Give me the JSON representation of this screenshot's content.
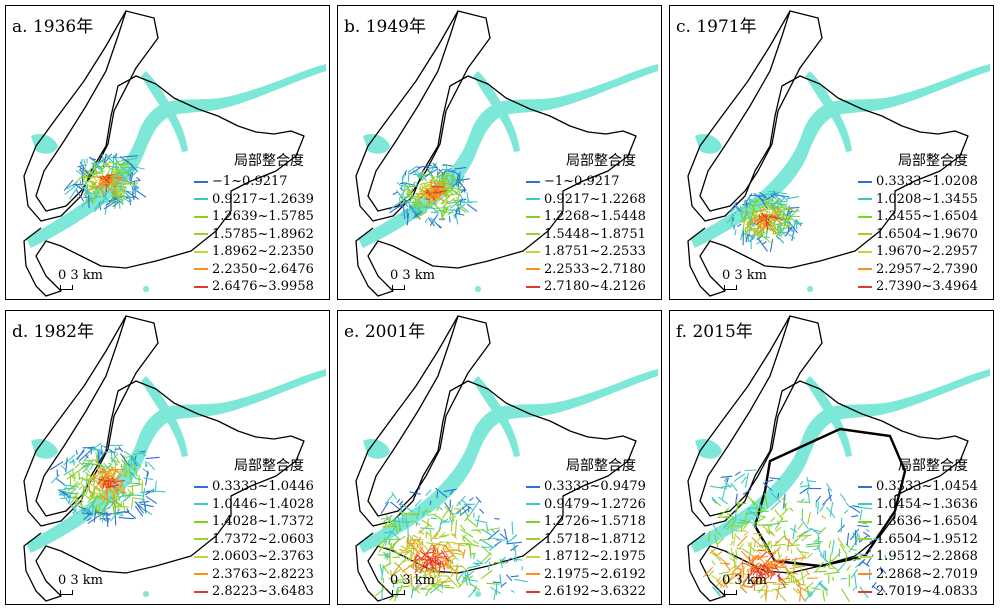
{
  "colors": [
    "#2f6fd6",
    "#3ec9c0",
    "#7ed321",
    "#9bd12a",
    "#c8d23a",
    "#ff8c1a",
    "#e03a2a"
  ],
  "legend_title": "局部整合度",
  "scale_label": "0 3 km",
  "panels": [
    {
      "title": "a. 1936年",
      "ranges": [
        "−1~0.9217",
        "0.9217~1.2639",
        "1.2639~1.5785",
        "1.5785~1.8962",
        "1.8962~2.2350",
        "2.2350~2.6476",
        "2.6476~3.9958"
      ]
    },
    {
      "title": "b. 1949年",
      "ranges": [
        "−1~0.9217",
        "0.9217~1.2268",
        "1.2268~1.5448",
        "1.5448~1.8751",
        "1.8751~2.2533",
        "2.2533~2.7180",
        "2.7180~4.2126"
      ]
    },
    {
      "title": "c. 1971年",
      "ranges": [
        "0.3333~1.0208",
        "1.0208~1.3455",
        "1.3455~1.6504",
        "1.6504~1.9670",
        "1.9670~2.2957",
        "2.2957~2.7390",
        "2.7390~3.4964"
      ]
    },
    {
      "title": "d. 1982年",
      "ranges": [
        "0.3333~1.0446",
        "1.0446~1.4028",
        "1.4028~1.7372",
        "1.7372~2.0603",
        "2.0603~2.3763",
        "2.3763~2.8223",
        "2.8223~3.6483"
      ]
    },
    {
      "title": "e. 2001年",
      "ranges": [
        "0.3333~0.9479",
        "0.9479~1.2726",
        "1.2726~1.5718",
        "1.5718~1.8712",
        "1.8712~2.1975",
        "2.1975~2.6192",
        "2.6192~3.6322"
      ]
    },
    {
      "title": "f. 2015年",
      "ranges": [
        "0.3333~1.0454",
        "1.0454~1.3636",
        "1.3636~1.6504",
        "1.6504~1.9512",
        "1.9512~2.2868",
        "2.2868~2.7019",
        "2.7019~4.0833"
      ]
    }
  ]
}
